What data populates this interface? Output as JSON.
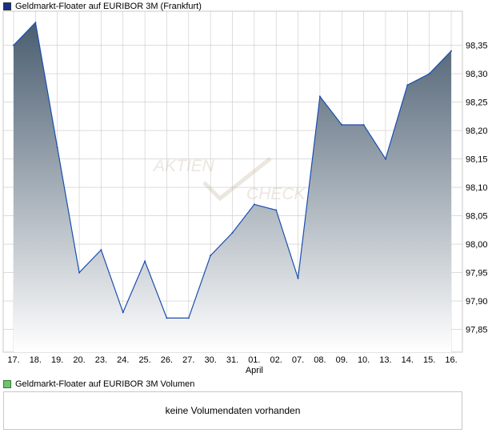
{
  "legend": {
    "main_label": "Geldmarkt-Floater auf EURIBOR 3M (Frankfurt)",
    "volume_label": "Geldmarkt-Floater auf EURIBOR 3M Volumen"
  },
  "volume_panel": {
    "message": "keine Volumendaten vorhanden"
  },
  "watermark": {
    "line1": "AKTIEN",
    "line2": "CHECK"
  },
  "colors": {
    "line": "#1a4fb0",
    "fill_top": "#4a5d70",
    "fill_bottom": "#ffffff",
    "grid": "#c8c8c8"
  },
  "chart_data": {
    "type": "area",
    "categories": [
      "17.",
      "18.",
      "19.",
      "20.",
      "23.",
      "24.",
      "25.",
      "26.",
      "27.",
      "30.",
      "31.",
      "01.",
      "02.",
      "07.",
      "08.",
      "09.",
      "10.",
      "13.",
      "14.",
      "15.",
      "16."
    ],
    "month_label": {
      "text": "April",
      "at_category": "01."
    },
    "series": [
      {
        "values": [
          98.35,
          98.39,
          98.17,
          97.95,
          97.99,
          97.88,
          97.97,
          97.87,
          97.87,
          97.98,
          98.02,
          98.07,
          98.06,
          97.94,
          98.26,
          98.21,
          98.21,
          98.15,
          98.28,
          98.3,
          98.34
        ]
      }
    ],
    "y_ticks": [
      "98,35",
      "98,30",
      "98,25",
      "98,20",
      "98,15",
      "98,10",
      "98,05",
      "98,00",
      "97,95",
      "97,90",
      "97,85"
    ],
    "y_tick_values": [
      98.35,
      98.3,
      98.25,
      98.2,
      98.15,
      98.1,
      98.05,
      98.0,
      97.95,
      97.9,
      97.85
    ],
    "ylim": [
      97.81,
      98.41
    ],
    "grid": true,
    "y_axis_position": "right"
  }
}
